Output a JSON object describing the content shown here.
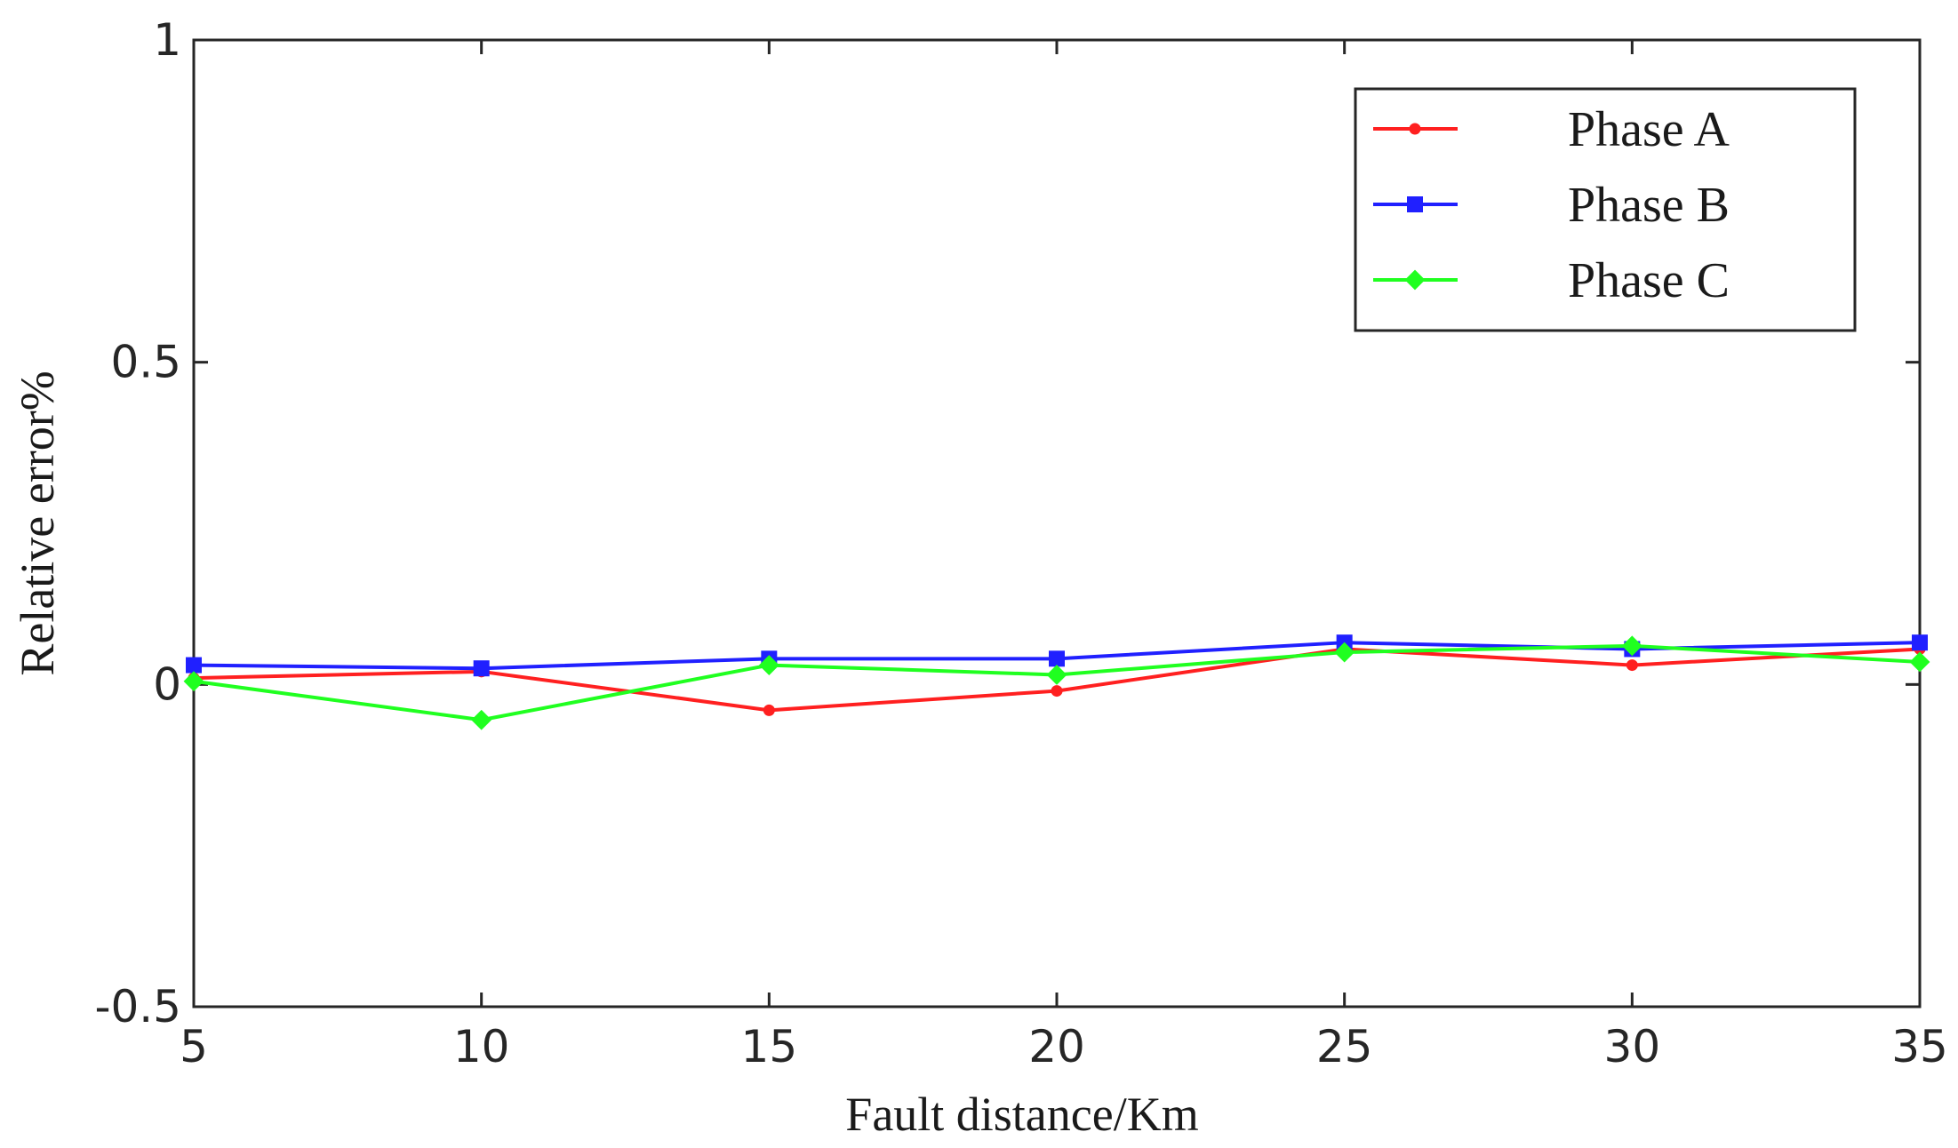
{
  "chart_data": {
    "type": "line",
    "title": "",
    "xlabel": "Fault distance/Km",
    "ylabel": "Relative error%",
    "x": [
      5,
      10,
      15,
      20,
      25,
      30,
      35
    ],
    "xlim": [
      5,
      35
    ],
    "ylim": [
      -0.5,
      1
    ],
    "xticks": [
      "5",
      "10",
      "15",
      "20",
      "25",
      "30",
      "35"
    ],
    "yticks": [
      "-0.5",
      "0",
      "0.5",
      "1"
    ],
    "grid": false,
    "legend_position": "top-right",
    "series": [
      {
        "name": "Phase A",
        "color": "#ff2020",
        "marker": "dot",
        "values": [
          0.01,
          0.02,
          -0.04,
          -0.01,
          0.055,
          0.03,
          0.055
        ]
      },
      {
        "name": "Phase B",
        "color": "#2020ff",
        "marker": "square",
        "values": [
          0.03,
          0.025,
          0.04,
          0.04,
          0.065,
          0.055,
          0.065
        ]
      },
      {
        "name": "Phase C",
        "color": "#20ff20",
        "marker": "diamond",
        "values": [
          0.005,
          -0.055,
          0.03,
          0.015,
          0.05,
          0.06,
          0.035
        ]
      }
    ]
  }
}
